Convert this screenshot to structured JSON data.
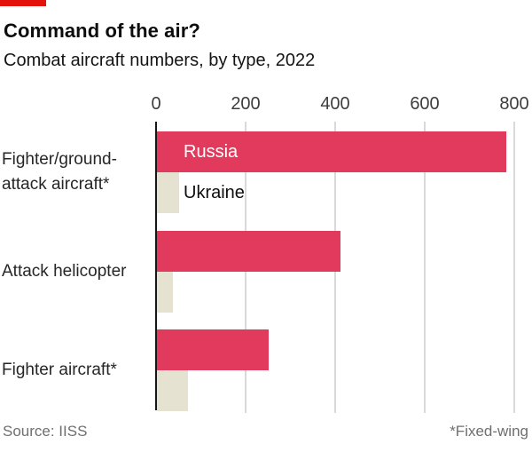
{
  "brand": {
    "accent_color": "#e3120b"
  },
  "chart_data": {
    "type": "bar",
    "orientation": "horizontal",
    "title": "Command of the air?",
    "subtitle": "Combat aircraft numbers, by type, 2022",
    "categories": [
      "Fighter/ground-attack aircraft*",
      "Attack helicopter",
      "Fighter aircraft*"
    ],
    "series": [
      {
        "name": "Russia",
        "color": "#e23a5c",
        "label_color": "#ffffff",
        "values": [
          780,
          410,
          250
        ]
      },
      {
        "name": "Ukraine",
        "color": "#e5e2d2",
        "label_color": "#0d0d0d",
        "values": [
          50,
          35,
          70
        ]
      }
    ],
    "xlim": [
      0,
      800
    ],
    "xticks": [
      0,
      200,
      400,
      600,
      800
    ],
    "grid": "vertical",
    "legend": {
      "position": "inline-first-row",
      "entries": [
        "Russia",
        "Ukraine"
      ]
    }
  },
  "footer": {
    "source": "Source: IISS",
    "footnote": "*Fixed-wing"
  }
}
